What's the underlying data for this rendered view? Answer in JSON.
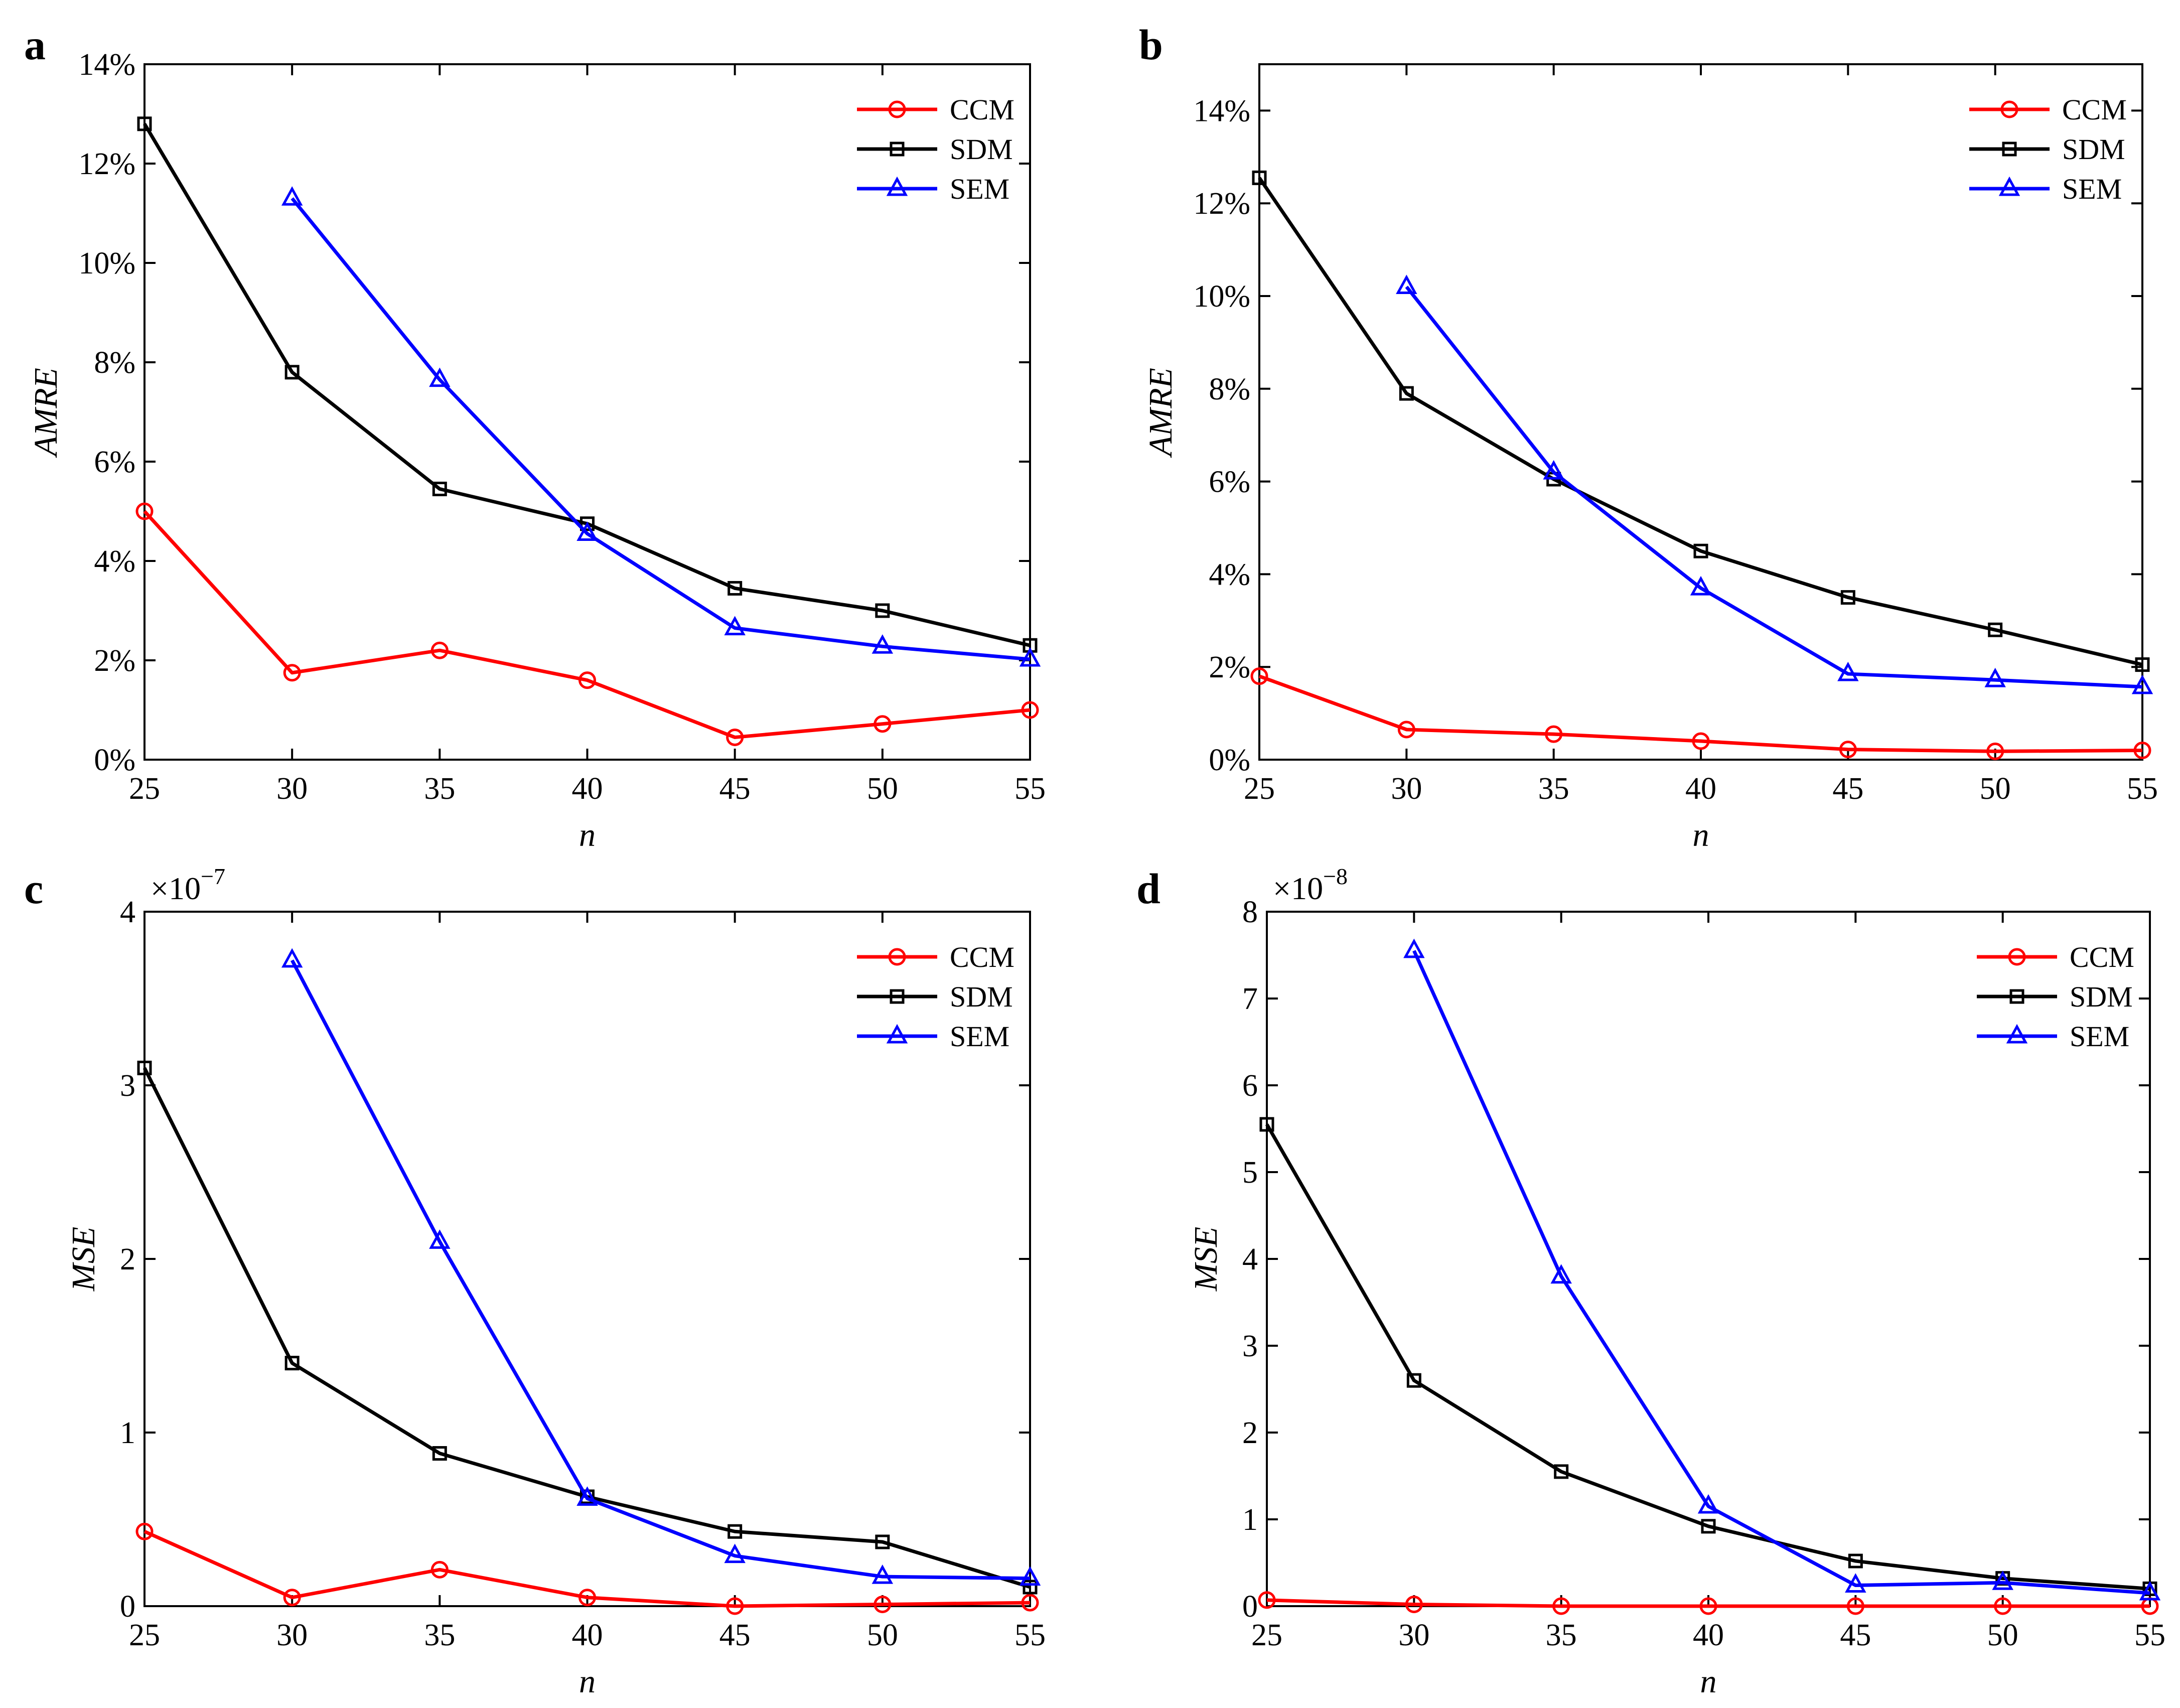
{
  "colors": {
    "CCM": "#ff0000",
    "SDM": "#000000",
    "SEM": "#0000ff"
  },
  "chart_data": [
    {
      "type": "line",
      "panel": "a",
      "x": [
        25,
        30,
        35,
        40,
        45,
        50,
        55
      ],
      "xlim": [
        25,
        55
      ],
      "xticks": [
        "25",
        "30",
        "35",
        "40",
        "45",
        "50",
        "55"
      ],
      "ylim": [
        0,
        14
      ],
      "yticks": [
        {
          "value": 0,
          "label": "0%"
        },
        {
          "value": 2,
          "label": "2%"
        },
        {
          "value": 4,
          "label": "4%"
        },
        {
          "value": 6,
          "label": "6%"
        },
        {
          "value": 8,
          "label": "8%"
        },
        {
          "value": 10,
          "label": "10%"
        },
        {
          "value": 12,
          "label": "12%"
        },
        {
          "value": 14,
          "label": "14%"
        }
      ],
      "xlabel": "n",
      "ylabel": "AMRE",
      "multiplier": "",
      "legend_position": "top-right",
      "grid": false,
      "series": [
        {
          "name": "CCM",
          "marker": "circle",
          "values": [
            5.0,
            1.75,
            2.2,
            1.6,
            0.45,
            0.72,
            1.0
          ]
        },
        {
          "name": "SDM",
          "marker": "square",
          "values": [
            12.8,
            7.8,
            5.45,
            4.75,
            3.45,
            3.0,
            2.3
          ]
        },
        {
          "name": "SEM",
          "marker": "triangle",
          "values": [
            null,
            11.3,
            7.65,
            4.55,
            2.65,
            2.28,
            2.02
          ]
        }
      ]
    },
    {
      "type": "line",
      "panel": "b",
      "x": [
        25,
        30,
        35,
        40,
        45,
        50,
        55
      ],
      "xlim": [
        25,
        55
      ],
      "xticks": [
        "25",
        "30",
        "35",
        "40",
        "45",
        "50",
        "55"
      ],
      "ylim": [
        0,
        15
      ],
      "yticks": [
        {
          "value": 0,
          "label": "0%"
        },
        {
          "value": 2,
          "label": "2%"
        },
        {
          "value": 4,
          "label": "4%"
        },
        {
          "value": 6,
          "label": "6%"
        },
        {
          "value": 8,
          "label": "8%"
        },
        {
          "value": 10,
          "label": "10%"
        },
        {
          "value": 12,
          "label": "12%"
        },
        {
          "value": 14,
          "label": "14%"
        }
      ],
      "xlabel": "n",
      "ylabel": "AMRE",
      "multiplier": "",
      "legend_position": "top-right",
      "grid": false,
      "series": [
        {
          "name": "CCM",
          "marker": "circle",
          "values": [
            1.8,
            0.65,
            0.55,
            0.4,
            0.22,
            0.18,
            0.2
          ]
        },
        {
          "name": "SDM",
          "marker": "square",
          "values": [
            12.55,
            7.9,
            6.05,
            4.5,
            3.5,
            2.8,
            2.05
          ]
        },
        {
          "name": "SEM",
          "marker": "triangle",
          "values": [
            null,
            10.2,
            6.2,
            3.7,
            1.85,
            1.72,
            1.57
          ]
        }
      ]
    },
    {
      "type": "line",
      "panel": "c",
      "x": [
        25,
        30,
        35,
        40,
        45,
        50,
        55
      ],
      "xlim": [
        25,
        55
      ],
      "xticks": [
        "25",
        "30",
        "35",
        "40",
        "45",
        "50",
        "55"
      ],
      "ylim": [
        0,
        4
      ],
      "yticks": [
        {
          "value": 0,
          "label": "0"
        },
        {
          "value": 1,
          "label": "1"
        },
        {
          "value": 2,
          "label": "2"
        },
        {
          "value": 3,
          "label": "3"
        },
        {
          "value": 4,
          "label": "4"
        }
      ],
      "xlabel": "n",
      "ylabel": "MSE",
      "multiplier": "×10",
      "multiplier_exp": "−7",
      "legend_position": "top-right",
      "grid": false,
      "series": [
        {
          "name": "CCM",
          "marker": "circle",
          "values": [
            0.43,
            0.05,
            0.21,
            0.05,
            0.0,
            0.01,
            0.02
          ]
        },
        {
          "name": "SDM",
          "marker": "square",
          "values": [
            3.1,
            1.4,
            0.88,
            0.63,
            0.43,
            0.37,
            0.11
          ]
        },
        {
          "name": "SEM",
          "marker": "triangle",
          "values": [
            null,
            3.72,
            2.1,
            0.62,
            0.29,
            0.17,
            0.16
          ]
        }
      ]
    },
    {
      "type": "line",
      "panel": "d",
      "x": [
        25,
        30,
        35,
        40,
        45,
        50,
        55
      ],
      "xlim": [
        25,
        55
      ],
      "xticks": [
        "25",
        "30",
        "35",
        "40",
        "45",
        "50",
        "55"
      ],
      "ylim": [
        0,
        8
      ],
      "yticks": [
        {
          "value": 0,
          "label": "0"
        },
        {
          "value": 1,
          "label": "1"
        },
        {
          "value": 2,
          "label": "2"
        },
        {
          "value": 3,
          "label": "3"
        },
        {
          "value": 4,
          "label": "4"
        },
        {
          "value": 5,
          "label": "5"
        },
        {
          "value": 6,
          "label": "6"
        },
        {
          "value": 7,
          "label": "7"
        },
        {
          "value": 8,
          "label": "8"
        }
      ],
      "xlabel": "n",
      "ylabel": "MSE",
      "multiplier": "×10",
      "multiplier_exp": "−8",
      "legend_position": "top-right",
      "grid": false,
      "series": [
        {
          "name": "CCM",
          "marker": "circle",
          "values": [
            0.07,
            0.02,
            0.0,
            0.0,
            0.0,
            0.0,
            0.0
          ]
        },
        {
          "name": "SDM",
          "marker": "square",
          "values": [
            5.55,
            2.6,
            1.55,
            0.92,
            0.52,
            0.32,
            0.2
          ]
        },
        {
          "name": "SEM",
          "marker": "triangle",
          "values": [
            null,
            7.55,
            3.8,
            1.15,
            0.24,
            0.27,
            0.15
          ]
        }
      ]
    }
  ]
}
